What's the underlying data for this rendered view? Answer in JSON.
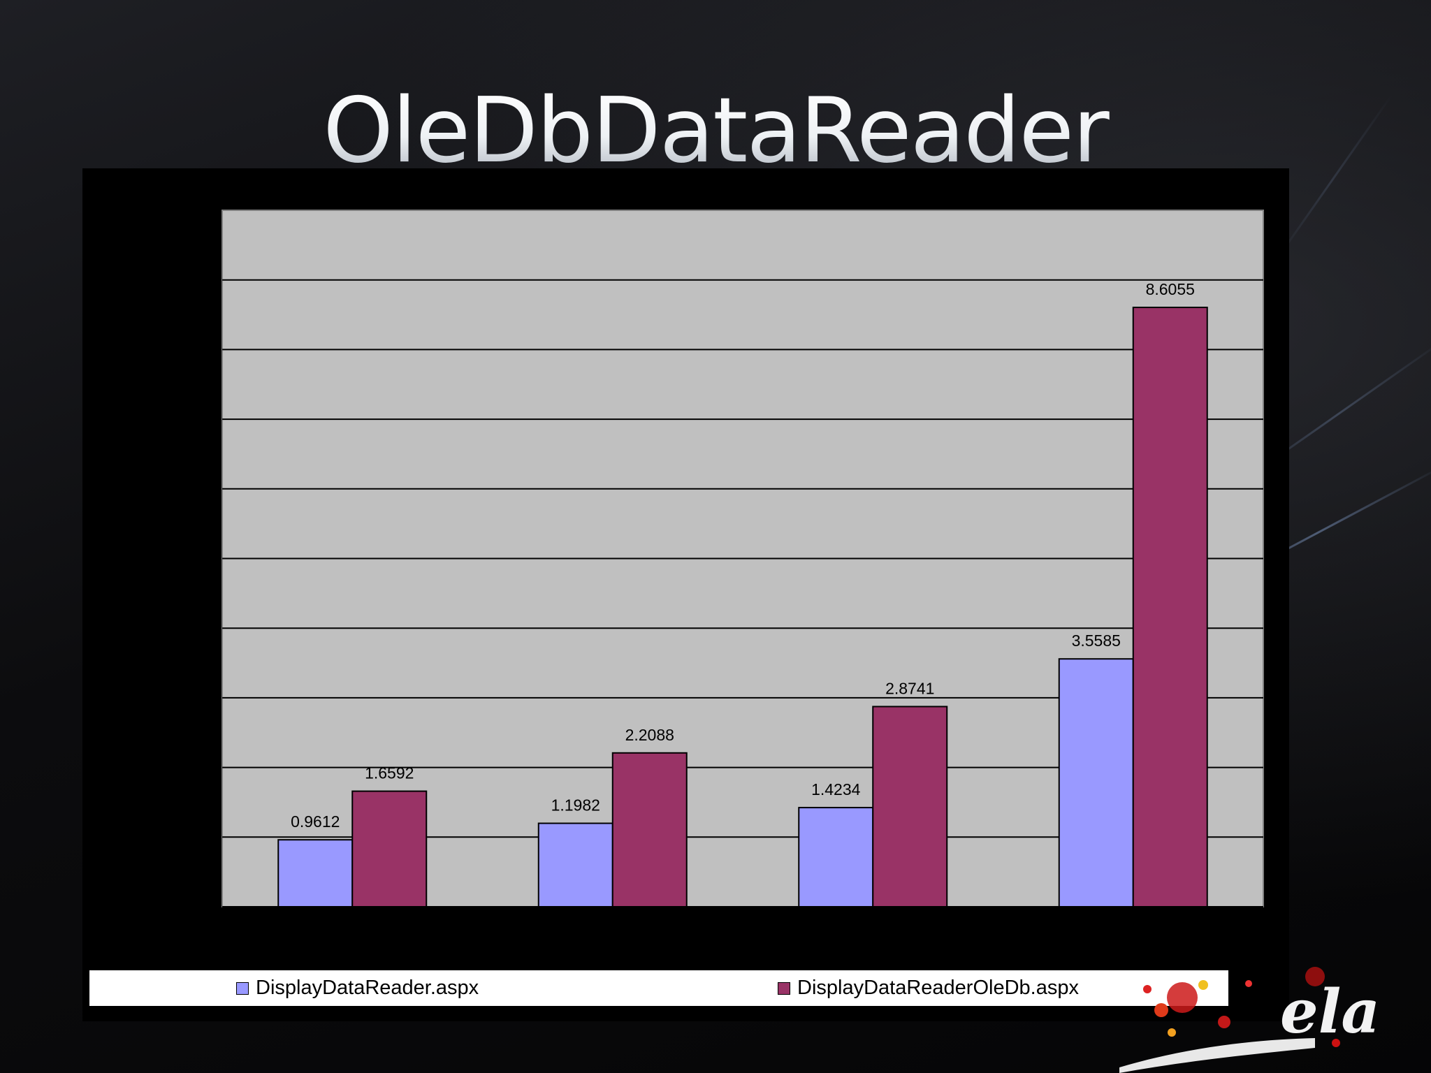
{
  "slide": {
    "title": "OleDbDataReader"
  },
  "colors": {
    "series_1": "#9999ff",
    "series_2": "#993366",
    "plot_background": "#c0c0c0",
    "gridline": "#000000"
  },
  "chart_data": {
    "type": "bar",
    "categories": [
      "",
      "",
      "",
      ""
    ],
    "series": [
      {
        "name": "DisplayDataReader.aspx",
        "values": [
          0.9612,
          1.1982,
          1.4234,
          3.5585
        ]
      },
      {
        "name": "DisplayDataReaderOleDb.aspx",
        "values": [
          1.6592,
          2.2088,
          2.8741,
          8.6055
        ]
      }
    ],
    "data_labels": {
      "series_1": [
        "0.9612",
        "1.1982",
        "1.4234",
        "3.5585"
      ],
      "series_2": [
        "1.6592",
        "2.2088",
        "2.8741",
        "8.6055"
      ]
    },
    "ylim": [
      0,
      10
    ],
    "grid": true,
    "legend_position": "bottom",
    "xlabel": "",
    "ylabel": ""
  },
  "logo": {
    "icon": "festival-logo-icon",
    "text": "ela"
  }
}
